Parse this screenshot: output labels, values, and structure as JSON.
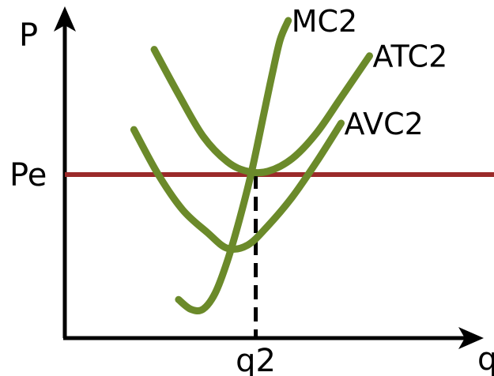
{
  "chart_data": {
    "type": "line",
    "title": "",
    "xlabel": "q",
    "ylabel": "P",
    "grid": false,
    "legend": "none",
    "xlim": [
      0,
      100
    ],
    "ylim": [
      0,
      100
    ],
    "price_line": {
      "label": "Pe",
      "y": 51,
      "color": "#9b2a2a"
    },
    "quantity_marker": {
      "label": "q2",
      "x": 47
    },
    "curve_color": "#6b8a2a",
    "series": [
      {
        "name": "MC2",
        "x": [
          28,
          31,
          34,
          37,
          40,
          43,
          46,
          49,
          51,
          53,
          55
        ],
        "y": [
          12,
          9,
          9,
          14,
          24,
          37,
          52,
          70,
          82,
          93,
          99
        ]
      },
      {
        "name": "ATC2",
        "x": [
          22,
          28,
          34,
          40,
          45,
          50,
          56,
          62,
          68,
          75
        ],
        "y": [
          90,
          76,
          63,
          55,
          52,
          52,
          56,
          64,
          75,
          88
        ]
      },
      {
        "name": "AVC2",
        "x": [
          17,
          23,
          29,
          35,
          40,
          45,
          50,
          56,
          62,
          68
        ],
        "y": [
          65,
          51,
          40,
          33,
          28,
          29,
          35,
          44,
          55,
          67
        ]
      }
    ]
  }
}
